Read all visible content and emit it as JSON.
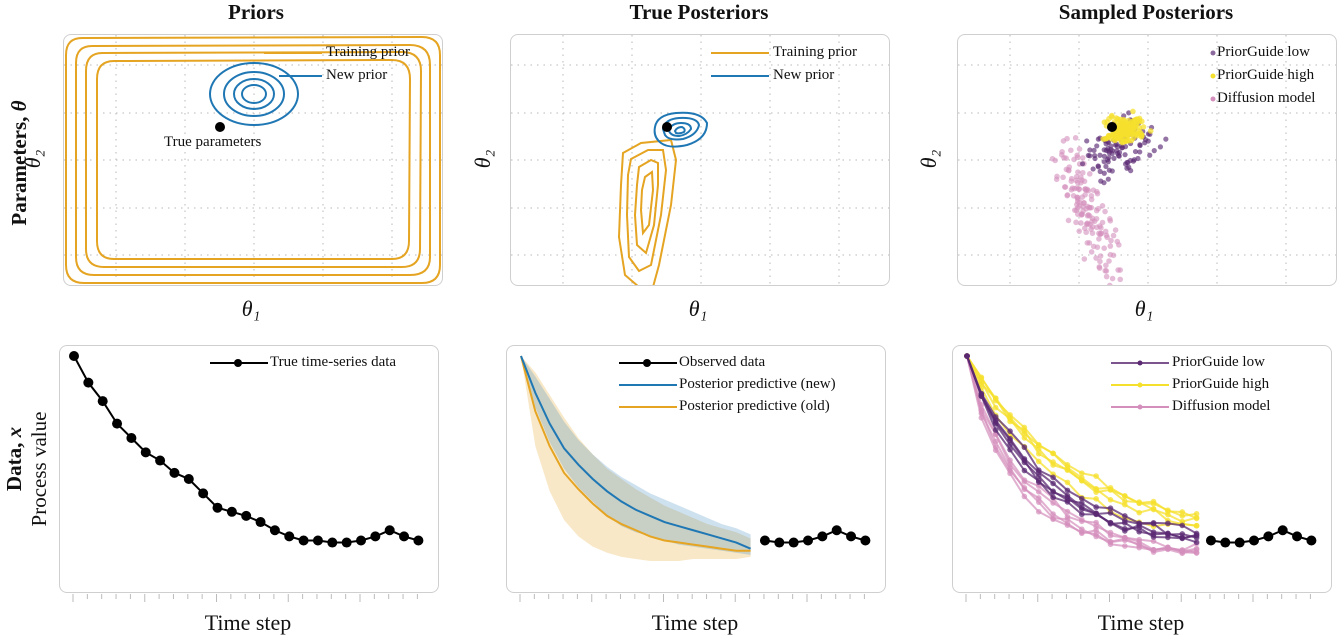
{
  "columns": {
    "priors": "Priors",
    "true_posteriors": "True Posteriors",
    "sampled_posteriors": "Sampled Posteriors"
  },
  "rows": {
    "parameters": {
      "bold": "Parameters, ",
      "symbol": "θ",
      "sub": "θ₂"
    },
    "data": {
      "bold": "Data, ",
      "symbol": "x",
      "sub": "Process value"
    }
  },
  "axes": {
    "theta1": "θ₁",
    "theta2": "θ₂",
    "time_step": "Time step"
  },
  "colors": {
    "training": "#e5a422",
    "new": "#1f77b4",
    "pg_low": "#5b2a73",
    "pg_high": "#f5e02e",
    "diffusion": "#d48fbc",
    "grid": "#b8b8b8",
    "black": "#000000"
  },
  "panels": {
    "priors": {
      "legend": [
        "Training prior",
        "New prior"
      ],
      "annotation": "True parameters"
    },
    "true_posteriors": {
      "legend": [
        "Training prior",
        "New prior"
      ]
    },
    "sampled_posteriors": {
      "legend": [
        "PriorGuide low",
        "PriorGuide high",
        "Diffusion model"
      ]
    },
    "true_data": {
      "legend": [
        "True time-series data"
      ]
    },
    "posterior_predictive": {
      "legend": [
        "Observed data",
        "Posterior predictive (new)",
        "Posterior predictive (old)"
      ]
    },
    "sampled_data": {
      "legend": [
        "PriorGuide low",
        "PriorGuide high",
        "Diffusion model"
      ]
    }
  },
  "chart_data": [
    {
      "type": "contour",
      "title": "Priors",
      "xlabel": "θ₁",
      "ylabel": "θ₂",
      "grid": true,
      "series": [
        {
          "name": "Training prior",
          "shape": "near-uniform box covering full domain",
          "levels": 4
        },
        {
          "name": "New prior",
          "shape": "gaussian ellipses",
          "center": [
            0.43,
            0.78
          ],
          "levels": 4
        }
      ],
      "annotations": [
        {
          "text": "True parameters",
          "point": [
            0.33,
            0.68
          ]
        }
      ]
    },
    {
      "type": "contour",
      "title": "True Posteriors",
      "xlabel": "θ₁",
      "ylabel": "θ₂",
      "grid": true,
      "series": [
        {
          "name": "Training prior",
          "shape": "elongated tilted ellipse",
          "center": [
            0.33,
            0.32
          ],
          "levels": 4
        },
        {
          "name": "New prior",
          "shape": "small ellipse",
          "center": [
            0.44,
            0.66
          ],
          "levels": 4
        }
      ],
      "true_point": [
        0.42,
        0.68
      ]
    },
    {
      "type": "scatter",
      "title": "Sampled Posteriors",
      "xlabel": "θ₁",
      "ylabel": "θ₂",
      "grid": true,
      "series": [
        {
          "name": "PriorGuide low",
          "center": [
            0.47,
            0.6
          ],
          "spread": "moderate"
        },
        {
          "name": "PriorGuide high",
          "center": [
            0.45,
            0.66
          ],
          "spread": "tight"
        },
        {
          "name": "Diffusion model",
          "center": [
            0.33,
            0.3
          ],
          "spread": "elongated"
        }
      ],
      "true_point": [
        0.42,
        0.68
      ]
    },
    {
      "type": "line",
      "xlabel": "Time step",
      "ylabel": "Process value",
      "series": [
        {
          "name": "True time-series data",
          "values": [
            1.0,
            0.87,
            0.78,
            0.67,
            0.6,
            0.53,
            0.49,
            0.43,
            0.4,
            0.33,
            0.26,
            0.24,
            0.22,
            0.19,
            0.15,
            0.12,
            0.1,
            0.1,
            0.09,
            0.09,
            0.1,
            0.12,
            0.15,
            0.12,
            0.1
          ]
        }
      ]
    },
    {
      "type": "line",
      "xlabel": "Time step",
      "series": [
        {
          "name": "Observed data",
          "x_start": 17,
          "values": [
            0.1,
            0.09,
            0.09,
            0.1,
            0.12,
            0.15,
            0.12,
            0.1
          ]
        },
        {
          "name": "Posterior predictive (new)",
          "values": [
            1.0,
            0.82,
            0.67,
            0.55,
            0.47,
            0.4,
            0.34,
            0.29,
            0.25,
            0.22,
            0.19,
            0.17,
            0.15,
            0.13,
            0.11,
            0.09,
            0.06
          ],
          "band_low": [
            1.0,
            0.75,
            0.58,
            0.45,
            0.36,
            0.29,
            0.22,
            0.17,
            0.14,
            0.12,
            0.1,
            0.08,
            0.07,
            0.06,
            0.05,
            0.04,
            0.03
          ],
          "band_high": [
            1.0,
            0.9,
            0.79,
            0.68,
            0.59,
            0.52,
            0.46,
            0.41,
            0.37,
            0.33,
            0.3,
            0.27,
            0.24,
            0.21,
            0.18,
            0.16,
            0.13
          ]
        },
        {
          "name": "Posterior predictive (old)",
          "values": [
            1.0,
            0.73,
            0.56,
            0.43,
            0.35,
            0.28,
            0.22,
            0.18,
            0.15,
            0.12,
            0.1,
            0.09,
            0.08,
            0.07,
            0.06,
            0.05,
            0.05
          ],
          "band_low": [
            1.0,
            0.56,
            0.34,
            0.2,
            0.12,
            0.07,
            0.04,
            0.02,
            0.01,
            0.0,
            0.0,
            0.0,
            0.01,
            0.01,
            0.01,
            0.01,
            0.02
          ],
          "band_high": [
            1.0,
            0.92,
            0.81,
            0.7,
            0.6,
            0.52,
            0.45,
            0.4,
            0.35,
            0.31,
            0.27,
            0.24,
            0.21,
            0.18,
            0.16,
            0.14,
            0.11
          ]
        }
      ]
    },
    {
      "type": "line",
      "xlabel": "Time step",
      "series": [
        {
          "name": "PriorGuide low",
          "trajectories": 5
        },
        {
          "name": "PriorGuide high",
          "trajectories": 5
        },
        {
          "name": "Diffusion model",
          "trajectories": 5
        },
        {
          "name": "Observed data",
          "x_start": 17,
          "values": [
            0.1,
            0.09,
            0.09,
            0.1,
            0.12,
            0.15,
            0.12,
            0.1
          ]
        }
      ]
    }
  ]
}
